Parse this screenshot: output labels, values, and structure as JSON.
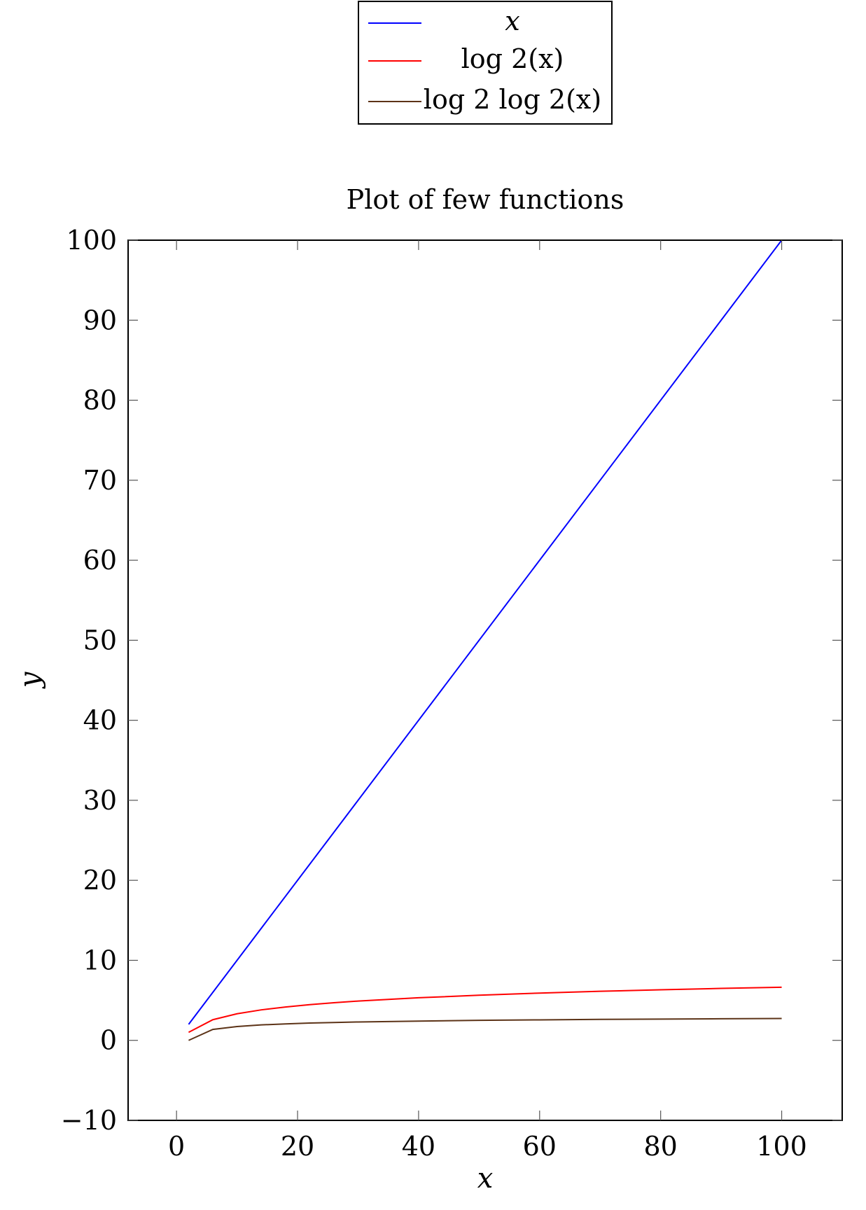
{
  "chart_data": {
    "type": "line",
    "title": "Plot of few functions",
    "xlabel": "x",
    "ylabel": "y",
    "xlim": [
      -8,
      110
    ],
    "ylim": [
      -10,
      100
    ],
    "x_ticks": [
      0,
      20,
      40,
      60,
      80,
      100
    ],
    "y_ticks": [
      -10,
      0,
      10,
      20,
      30,
      40,
      50,
      60,
      70,
      80,
      90,
      100
    ],
    "x_tick_labels": [
      "0",
      "20",
      "40",
      "60",
      "80",
      "100"
    ],
    "y_tick_labels": [
      "−10",
      "0",
      "10",
      "20",
      "30",
      "40",
      "50",
      "60",
      "70",
      "80",
      "90",
      "100"
    ],
    "grid": false,
    "legend_position": "above",
    "series": [
      {
        "name": "x",
        "color": "#0000ff",
        "x": [
          2,
          100
        ],
        "y": [
          2,
          100
        ]
      },
      {
        "name": "log 2(x)",
        "color": "#ff0000",
        "x": [
          2,
          6,
          10,
          14,
          18,
          22,
          26,
          30,
          40,
          50,
          60,
          70,
          80,
          90,
          100
        ],
        "y": [
          1,
          2.58,
          3.32,
          3.81,
          4.17,
          4.46,
          4.7,
          4.91,
          5.32,
          5.64,
          5.91,
          6.13,
          6.32,
          6.49,
          6.64
        ]
      },
      {
        "name": "log 2 log 2(x)",
        "color": "#5c3317",
        "x": [
          2,
          6,
          10,
          14,
          18,
          22,
          26,
          30,
          40,
          50,
          60,
          70,
          80,
          90,
          100
        ],
        "y": [
          0,
          1.37,
          1.73,
          1.93,
          2.06,
          2.16,
          2.23,
          2.3,
          2.41,
          2.5,
          2.56,
          2.62,
          2.66,
          2.7,
          2.73
        ]
      }
    ]
  }
}
